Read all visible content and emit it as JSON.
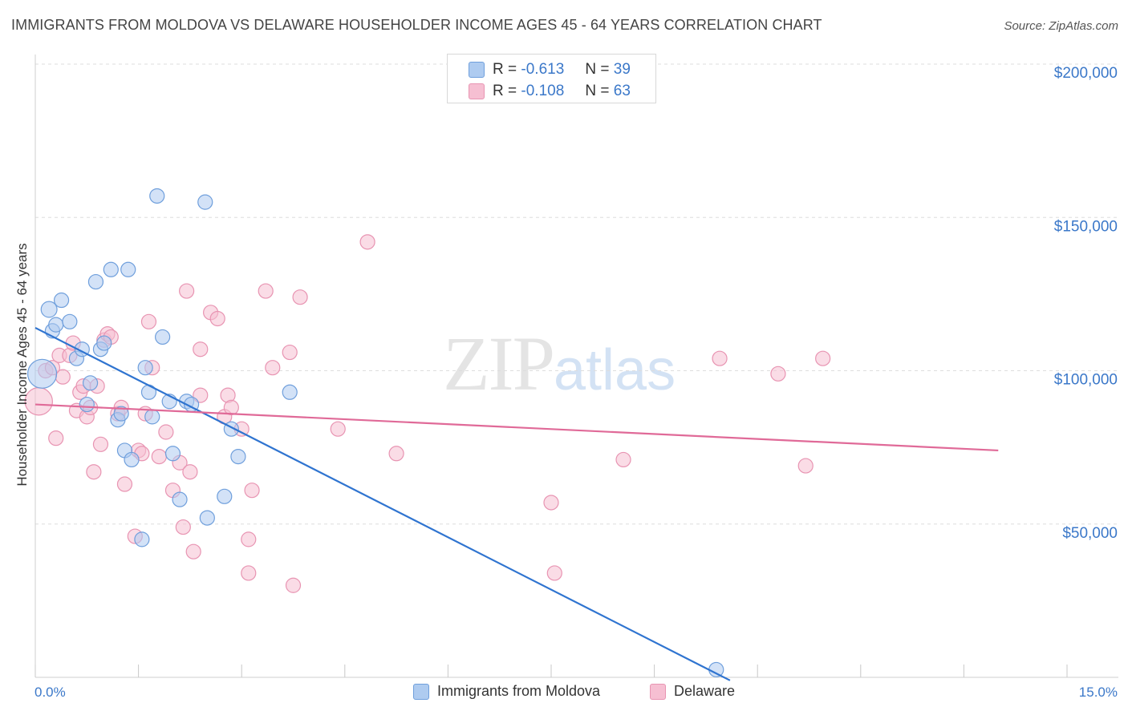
{
  "header": {
    "title": "IMMIGRANTS FROM MOLDOVA VS DELAWARE HOUSEHOLDER INCOME AGES 45 - 64 YEARS CORRELATION CHART",
    "source": "Source: ZipAtlas.com"
  },
  "watermark": {
    "zip": "ZIP",
    "atlas": "atlas"
  },
  "legend": {
    "moldova": {
      "r_label": "R =",
      "r_value": "-0.613",
      "n_label": "N =",
      "n_value": "39"
    },
    "delaware": {
      "r_label": "R =",
      "r_value": "-0.108",
      "n_label": "N =",
      "n_value": "63"
    }
  },
  "bottom_legend": {
    "moldova": "Immigrants from Moldova",
    "delaware": "Delaware"
  },
  "colors": {
    "moldova_fill": "#aecbf0",
    "moldova_stroke": "#6f9fdc",
    "moldova_line": "#2f74d0",
    "delaware_fill": "#f6bfd2",
    "delaware_stroke": "#e894b2",
    "delaware_line": "#e06a98",
    "tick_text": "#3b78c9",
    "grid": "#dddddd"
  },
  "chart_data": {
    "type": "scatter",
    "title": "IMMIGRANTS FROM MOLDOVA VS DELAWARE HOUSEHOLDER INCOME AGES 45 - 64 YEARS CORRELATION CHART",
    "xlabel": "",
    "ylabel": "Householder Income Ages 45 - 64 years",
    "xlim": [
      0,
      15
    ],
    "ylim": [
      0,
      200000
    ],
    "x_tick_labels": [
      "0.0%",
      "15.0%"
    ],
    "y_ticks": [
      {
        "value": 50000,
        "label": "$50,000"
      },
      {
        "value": 100000,
        "label": "$100,000"
      },
      {
        "value": 150000,
        "label": "$150,000"
      },
      {
        "value": 200000,
        "label": "$200,000"
      }
    ],
    "series": [
      {
        "name": "Immigrants from Moldova",
        "trend": {
          "x": [
            0.0,
            10.1
          ],
          "y": [
            114000,
            -1000
          ]
        },
        "points": [
          [
            0.1,
            99000,
            20
          ],
          [
            0.2,
            120000,
            11
          ],
          [
            0.25,
            113000,
            10
          ],
          [
            0.3,
            115000,
            10
          ],
          [
            0.38,
            123000,
            10
          ],
          [
            0.5,
            116000,
            10
          ],
          [
            0.6,
            104000,
            10
          ],
          [
            0.68,
            107000,
            10
          ],
          [
            0.8,
            96000,
            10
          ],
          [
            0.75,
            89000,
            10
          ],
          [
            0.88,
            129000,
            10
          ],
          [
            0.95,
            107000,
            10
          ],
          [
            1.0,
            109000,
            10
          ],
          [
            1.1,
            133000,
            10
          ],
          [
            1.35,
            133000,
            10
          ],
          [
            1.2,
            84000,
            10
          ],
          [
            1.25,
            86000,
            10
          ],
          [
            1.3,
            74000,
            10
          ],
          [
            1.4,
            71000,
            10
          ],
          [
            1.55,
            45000,
            10
          ],
          [
            1.6,
            101000,
            10
          ],
          [
            1.65,
            93000,
            10
          ],
          [
            1.7,
            85000,
            10
          ],
          [
            1.77,
            157000,
            10
          ],
          [
            1.85,
            111000,
            10
          ],
          [
            1.95,
            90000,
            10
          ],
          [
            2.0,
            73000,
            10
          ],
          [
            2.1,
            58000,
            10
          ],
          [
            2.2,
            90000,
            10
          ],
          [
            2.27,
            89000,
            10
          ],
          [
            2.47,
            155000,
            10
          ],
          [
            2.5,
            52000,
            10
          ],
          [
            2.75,
            59000,
            10
          ],
          [
            2.85,
            81000,
            10
          ],
          [
            2.95,
            72000,
            10
          ],
          [
            3.7,
            93000,
            10
          ],
          [
            9.9,
            2500,
            10
          ]
        ]
      },
      {
        "name": "Delaware",
        "trend": {
          "x": [
            0.0,
            14.0
          ],
          "y": [
            89000,
            74000
          ]
        },
        "points": [
          [
            0.05,
            90000,
            19
          ],
          [
            0.15,
            100000,
            10
          ],
          [
            0.25,
            101000,
            10
          ],
          [
            0.3,
            78000,
            10
          ],
          [
            0.35,
            105000,
            10
          ],
          [
            0.4,
            98000,
            10
          ],
          [
            0.5,
            105000,
            10
          ],
          [
            0.55,
            109000,
            10
          ],
          [
            0.6,
            87000,
            10
          ],
          [
            0.65,
            93000,
            10
          ],
          [
            0.7,
            95000,
            10
          ],
          [
            0.75,
            85000,
            10
          ],
          [
            0.8,
            88000,
            10
          ],
          [
            0.85,
            67000,
            10
          ],
          [
            0.9,
            95000,
            10
          ],
          [
            0.95,
            76000,
            10
          ],
          [
            1.0,
            110000,
            10
          ],
          [
            1.05,
            112000,
            10
          ],
          [
            1.1,
            111000,
            10
          ],
          [
            1.2,
            86000,
            10
          ],
          [
            1.25,
            88000,
            10
          ],
          [
            1.3,
            63000,
            10
          ],
          [
            1.45,
            46000,
            10
          ],
          [
            1.5,
            74000,
            10
          ],
          [
            1.55,
            73000,
            10
          ],
          [
            1.6,
            86000,
            10
          ],
          [
            1.65,
            116000,
            10
          ],
          [
            1.7,
            101000,
            10
          ],
          [
            1.8,
            72000,
            10
          ],
          [
            1.9,
            80000,
            10
          ],
          [
            2.0,
            61000,
            10
          ],
          [
            2.1,
            70000,
            10
          ],
          [
            2.15,
            49000,
            10
          ],
          [
            2.2,
            126000,
            10
          ],
          [
            2.25,
            67000,
            10
          ],
          [
            2.3,
            41000,
            10
          ],
          [
            2.4,
            107000,
            10
          ],
          [
            2.4,
            92000,
            10
          ],
          [
            2.55,
            119000,
            10
          ],
          [
            2.65,
            117000,
            10
          ],
          [
            2.75,
            85000,
            10
          ],
          [
            2.8,
            92000,
            10
          ],
          [
            2.85,
            88000,
            10
          ],
          [
            3.0,
            81000,
            10
          ],
          [
            3.1,
            45000,
            10
          ],
          [
            3.15,
            61000,
            10
          ],
          [
            3.35,
            126000,
            10
          ],
          [
            3.45,
            101000,
            10
          ],
          [
            3.7,
            106000,
            10
          ],
          [
            3.85,
            124000,
            10
          ],
          [
            3.1,
            34000,
            10
          ],
          [
            3.75,
            30000,
            10
          ],
          [
            4.4,
            81000,
            10
          ],
          [
            4.83,
            142000,
            10
          ],
          [
            5.25,
            73000,
            10
          ],
          [
            7.5,
            57000,
            10
          ],
          [
            7.55,
            34000,
            10
          ],
          [
            8.55,
            71000,
            10
          ],
          [
            9.95,
            104000,
            10
          ],
          [
            10.8,
            99000,
            10
          ],
          [
            11.2,
            69000,
            10
          ],
          [
            11.45,
            104000,
            10
          ]
        ]
      }
    ]
  }
}
